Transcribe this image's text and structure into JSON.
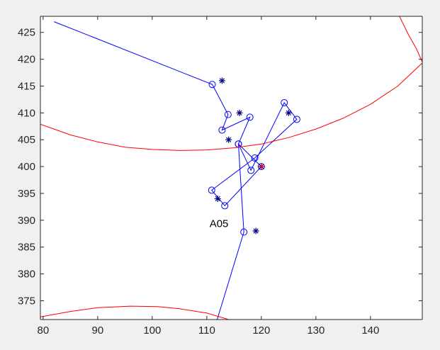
{
  "chart_data": {
    "type": "scatter",
    "title": "",
    "xlabel": "",
    "ylabel": "",
    "xlim": [
      79.5,
      149.5
    ],
    "ylim": [
      371.5,
      428
    ],
    "grid": false,
    "x_ticks": [
      80,
      90,
      100,
      110,
      120,
      130,
      140
    ],
    "y_ticks": [
      375,
      380,
      385,
      390,
      395,
      400,
      405,
      410,
      415,
      420,
      425
    ],
    "annotations": [
      {
        "text": "A05",
        "x": 110.5,
        "y": 389.5
      }
    ],
    "series": [
      {
        "style": "line-circle-markers",
        "color": "#0000ff",
        "points": [
          [
            82,
            427
          ],
          [
            111,
            415.3
          ],
          [
            113.9,
            409.7
          ],
          [
            112.8,
            406.8
          ],
          [
            117.9,
            409.2
          ],
          [
            115.8,
            404.2
          ],
          [
            118.1,
            399.3
          ],
          [
            124.2,
            411.9
          ],
          [
            126.5,
            408.8
          ],
          [
            118.8,
            401.6
          ],
          [
            110.9,
            395.6
          ],
          [
            113.3,
            392.7
          ],
          [
            120.0,
            400.0
          ],
          [
            115.8,
            404.2
          ],
          [
            116.8,
            387.8
          ],
          [
            111.9,
            371.5
          ]
        ]
      },
      {
        "style": "star-markers",
        "color": "#000080",
        "points": [
          [
            112.8,
            416.0
          ],
          [
            116.0,
            410.0
          ],
          [
            125.0,
            410.0
          ],
          [
            114.0,
            405.0
          ],
          [
            120.0,
            400.0
          ],
          [
            112.0,
            394.0
          ],
          [
            119.0,
            388.0
          ]
        ]
      },
      {
        "style": "plus-marker",
        "color": "#ff0000",
        "points": [
          [
            120.0,
            400.0
          ]
        ]
      },
      {
        "style": "line",
        "color": "#ff0000",
        "points": [
          [
            79.5,
            407.9
          ],
          [
            85,
            405.9
          ],
          [
            90,
            404.6
          ],
          [
            95,
            403.6
          ],
          [
            100,
            403.2
          ],
          [
            105,
            403.0
          ],
          [
            110,
            403.1
          ],
          [
            115,
            403.5
          ],
          [
            120,
            404.2
          ],
          [
            125,
            405.4
          ],
          [
            130,
            407.0
          ],
          [
            135,
            409.0
          ],
          [
            140,
            411.6
          ],
          [
            145,
            415.0
          ],
          [
            149.5,
            419.3
          ]
        ]
      },
      {
        "style": "line",
        "color": "#ff0000",
        "points": [
          [
            79.5,
            372.0
          ],
          [
            85,
            373.0
          ],
          [
            90,
            373.7
          ],
          [
            96,
            374.0
          ],
          [
            101,
            373.9
          ],
          [
            105,
            373.5
          ],
          [
            110,
            372.7
          ],
          [
            114,
            371.5
          ]
        ]
      },
      {
        "style": "line",
        "color": "#ff0000",
        "points": [
          [
            145.3,
            428
          ],
          [
            147,
            424.5
          ],
          [
            148.4,
            422.0
          ],
          [
            149.5,
            419.5
          ]
        ]
      }
    ]
  }
}
